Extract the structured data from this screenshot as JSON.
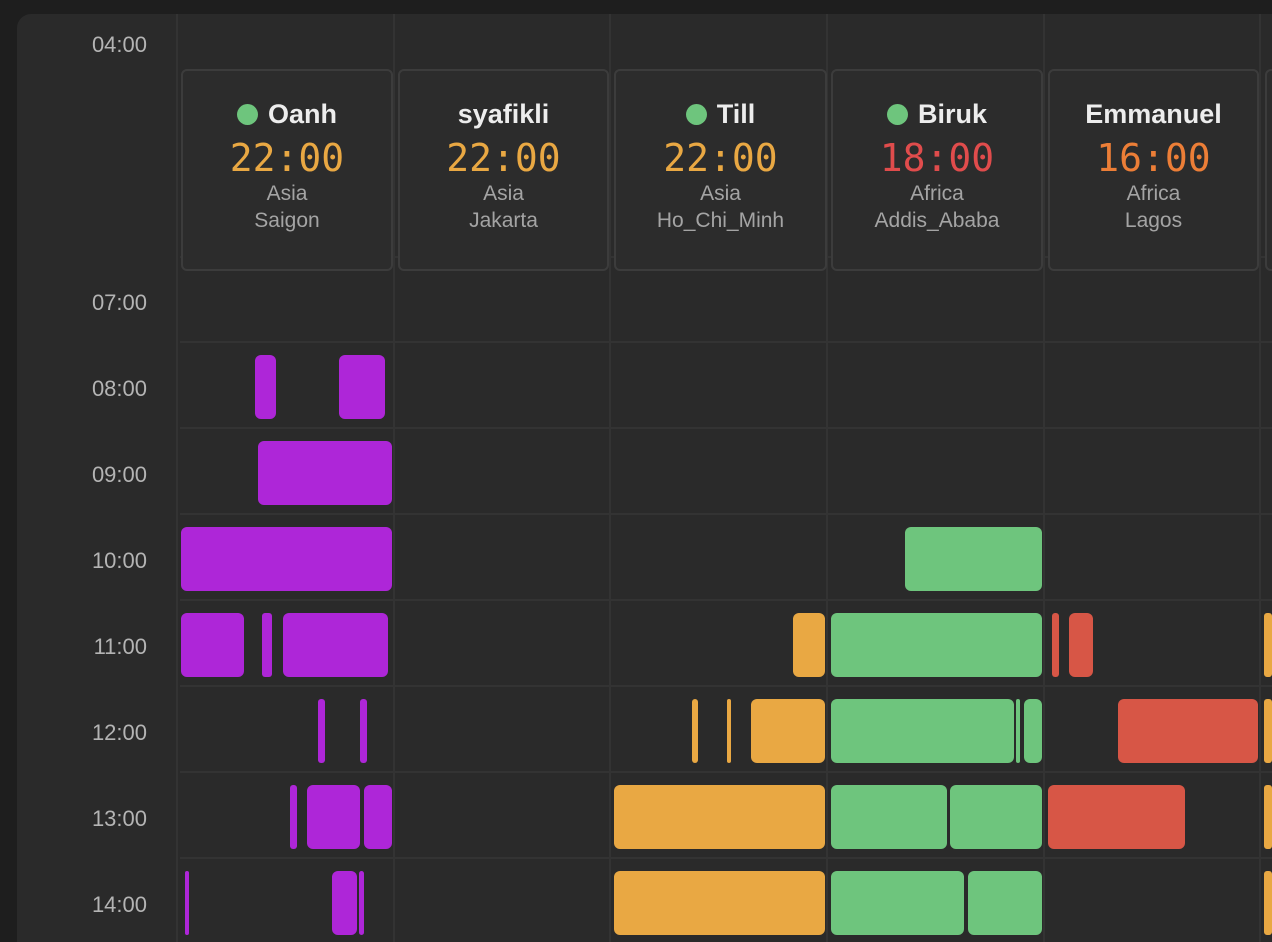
{
  "colors": {
    "oanh": "#ae26d8",
    "till": "#e9a843",
    "biruk": "#6ec57d",
    "emmanuel": "#d75646",
    "online": "#6ec57d",
    "time_orange": "#e9a843",
    "time_red": "#e04c4c",
    "time_deep_orange": "#ec7e37"
  },
  "hours": [
    "04:00",
    "07:00",
    "08:00",
    "09:00",
    "10:00",
    "11:00",
    "12:00",
    "13:00",
    "14:00"
  ],
  "people": [
    {
      "name": "Oanh",
      "online": true,
      "time": "22:00",
      "time_color": "#e9a843",
      "region": "Asia",
      "city": "Saigon"
    },
    {
      "name": "syafikli",
      "online": false,
      "time": "22:00",
      "time_color": "#e9a843",
      "region": "Asia",
      "city": "Jakarta"
    },
    {
      "name": "Till",
      "online": true,
      "time": "22:00",
      "time_color": "#e9a843",
      "region": "Asia",
      "city": "Ho_Chi_Minh"
    },
    {
      "name": "Biruk",
      "online": true,
      "time": "18:00",
      "time_color": "#e04c4c",
      "region": "Africa",
      "city": "Addis_Ababa"
    },
    {
      "name": "Emmanuel",
      "online": false,
      "time": "16:00",
      "time_color": "#ec7e37",
      "region": "Africa",
      "city": "Lagos"
    }
  ]
}
